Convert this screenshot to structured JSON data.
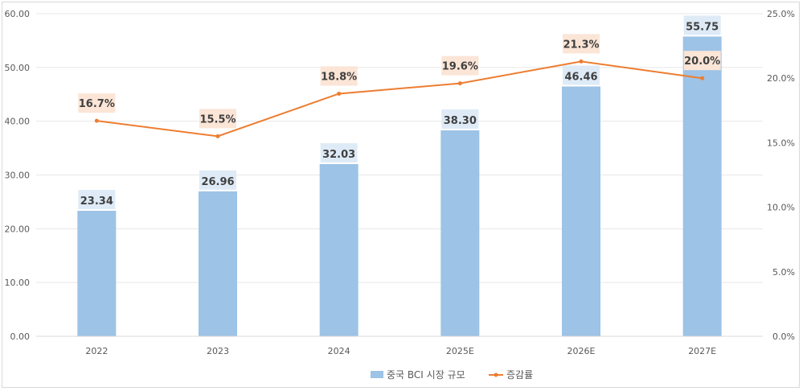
{
  "chart_data": {
    "type": "bar+line",
    "categories": [
      "2022",
      "2023",
      "2024",
      "2025E",
      "2026E",
      "2027E"
    ],
    "series": [
      {
        "name": "중국 BCI 시장 규모",
        "type": "bar",
        "axis": "left",
        "values": [
          23.34,
          26.96,
          32.03,
          38.3,
          46.46,
          55.75
        ],
        "labels": [
          "23.34",
          "26.96",
          "32.03",
          "38.30",
          "46.46",
          "55.75"
        ],
        "color": "#9dc3e6"
      },
      {
        "name": "증감률",
        "type": "line",
        "axis": "right",
        "values": [
          16.7,
          15.5,
          18.8,
          19.6,
          21.3,
          20.0
        ],
        "labels": [
          "16.7%",
          "15.5%",
          "18.8%",
          "19.6%",
          "21.3%",
          "20.0%"
        ],
        "color": "#ed7d31"
      }
    ],
    "y_left": {
      "min": 0,
      "max": 60,
      "ticks": [
        0,
        10,
        20,
        30,
        40,
        50,
        60
      ],
      "tick_labels": [
        "0.00",
        "10.00",
        "20.00",
        "30.00",
        "40.00",
        "50.00",
        "60.00"
      ]
    },
    "y_right": {
      "min": 0,
      "max": 25,
      "ticks": [
        0,
        5,
        10,
        15,
        20,
        25
      ],
      "tick_labels": [
        "0.0%",
        "5.0%",
        "10.0%",
        "15.0%",
        "20.0%",
        "25.0%"
      ]
    },
    "grid": true,
    "legend": "bottom-center",
    "bar_label_bg": "#deebf7",
    "line_label_bg": "#fbe5d6",
    "grid_color": "#e7e7e7"
  }
}
